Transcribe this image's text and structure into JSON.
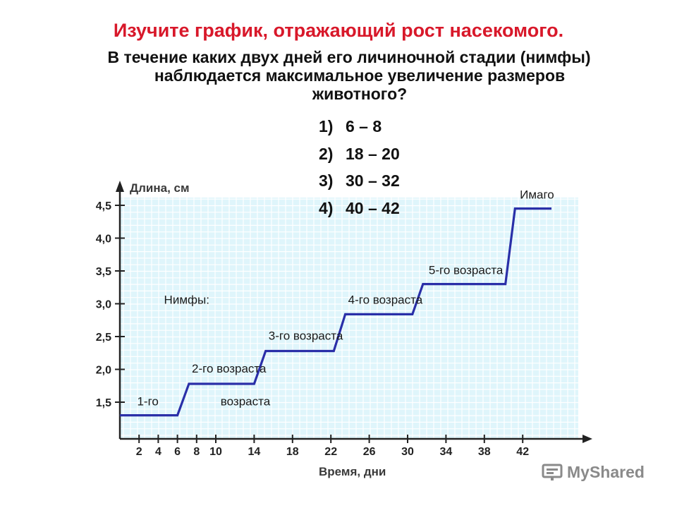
{
  "title": "Изучите график, отражающий рост насекомого.",
  "question": {
    "line1": "В течение каких двух дней его личиночной стадии (нимфы)",
    "line2": "наблюдается максимальное увеличение размеров",
    "line3": "животного?"
  },
  "answers": [
    {
      "num": "1)",
      "text": "6 – 8"
    },
    {
      "num": "2)",
      "text": "18 – 20"
    },
    {
      "num": "3)",
      "text": "30 – 32"
    },
    {
      "num": "4)",
      "text": "40 – 42"
    }
  ],
  "watermark": "MyShared",
  "chart_data": {
    "type": "line",
    "xlabel": "Время, дни",
    "ylabel": "Длина, см",
    "x_ticks": [
      2,
      4,
      6,
      8,
      10,
      14,
      18,
      22,
      26,
      30,
      34,
      38,
      42
    ],
    "y_ticks": [
      "1,5",
      "2,0",
      "2,5",
      "3,0",
      "3,5",
      "4,0",
      "4,5"
    ],
    "y_tick_values": [
      1.5,
      2.0,
      2.5,
      3.0,
      3.5,
      4.0,
      4.5
    ],
    "xlim": [
      0,
      44
    ],
    "ylim": [
      1.2,
      4.6
    ],
    "grid": true,
    "points": [
      {
        "x": 0,
        "y": 1.3
      },
      {
        "x": 6,
        "y": 1.3
      },
      {
        "x": 7.2,
        "y": 1.78
      },
      {
        "x": 14,
        "y": 1.78
      },
      {
        "x": 15.2,
        "y": 2.28
      },
      {
        "x": 22.3,
        "y": 2.28
      },
      {
        "x": 23.5,
        "y": 2.84
      },
      {
        "x": 30.5,
        "y": 2.84
      },
      {
        "x": 31.6,
        "y": 3.3
      },
      {
        "x": 40.2,
        "y": 3.3
      },
      {
        "x": 41.2,
        "y": 4.45
      },
      {
        "x": 45,
        "y": 4.45
      }
    ],
    "annotations": [
      {
        "text": "Нимфы:",
        "x": 4.6,
        "y": 3.0
      },
      {
        "text": "1-го",
        "x": 1.8,
        "y": 1.45
      },
      {
        "text": "возраста",
        "x": 10.5,
        "y": 1.45
      },
      {
        "text": "2-го возраста",
        "x": 7.5,
        "y": 1.95
      },
      {
        "text": "3-го возраста",
        "x": 15.5,
        "y": 2.45
      },
      {
        "text": "4-го возраста",
        "x": 23.8,
        "y": 3.0
      },
      {
        "text": "5-го возраста",
        "x": 32.2,
        "y": 3.45
      },
      {
        "text": "Имаго",
        "x": 41.7,
        "y": 4.6
      }
    ]
  }
}
